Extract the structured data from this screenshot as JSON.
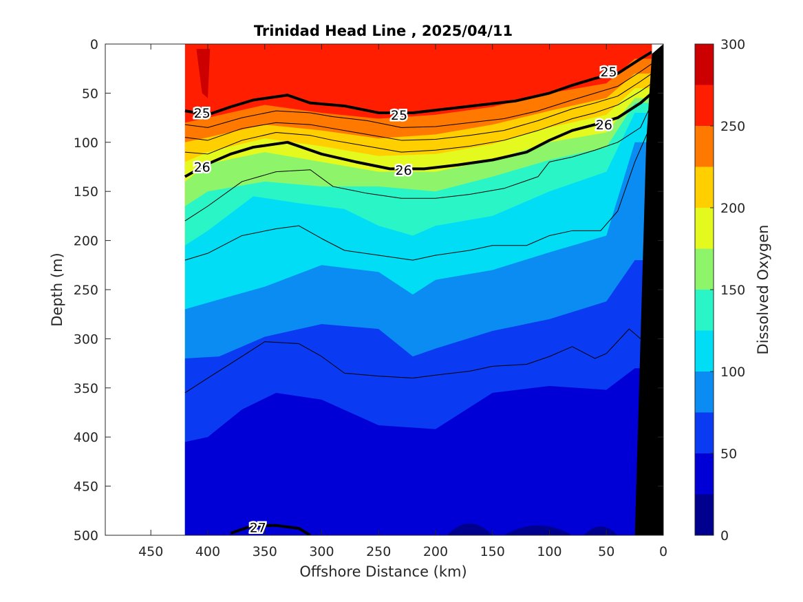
{
  "chart_data": {
    "type": "filled-contour",
    "title": "Trinidad Head Line , 2025/04/11",
    "xlabel": "Offshore Distance (km)",
    "ylabel": "Depth (m)",
    "colorbar_label": "Dissolved Oxygen",
    "xlim": [
      490,
      0
    ],
    "ylim": [
      0,
      500
    ],
    "x_ticks": [
      450,
      400,
      350,
      300,
      250,
      200,
      150,
      100,
      50,
      0
    ],
    "y_ticks": [
      0,
      50,
      100,
      150,
      200,
      250,
      300,
      350,
      400,
      450,
      500
    ],
    "colorbar_ticks": [
      0,
      50,
      100,
      150,
      200,
      250,
      300
    ],
    "colorbar_range": [
      0,
      300
    ],
    "colormap_levels": [
      {
        "from": 0,
        "to": 25,
        "color": "#00008f"
      },
      {
        "from": 25,
        "to": 50,
        "color": "#0000d6"
      },
      {
        "from": 50,
        "to": 75,
        "color": "#0a3af2"
      },
      {
        "from": 75,
        "to": 100,
        "color": "#0a8cf2"
      },
      {
        "from": 100,
        "to": 125,
        "color": "#00ddf5"
      },
      {
        "from": 125,
        "to": 150,
        "color": "#2af5c7"
      },
      {
        "from": 150,
        "to": 175,
        "color": "#8ef56a"
      },
      {
        "from": 175,
        "to": 200,
        "color": "#e4fa1e"
      },
      {
        "from": 200,
        "to": 225,
        "color": "#ffcf00"
      },
      {
        "from": 225,
        "to": 250,
        "color": "#ff7800"
      },
      {
        "from": 250,
        "to": 275,
        "color": "#ff1e00"
      },
      {
        "from": 275,
        "to": 300,
        "color": "#cc0000"
      }
    ],
    "data_extent_x": [
      420,
      10
    ],
    "oxygen_boundaries": [
      {
        "value": 25,
        "x": [
          420,
          350,
          300,
          250,
          200,
          150,
          100,
          50,
          10
        ],
        "depth": [
          500,
          500,
          500,
          500,
          500,
          500,
          500,
          500,
          500
        ]
      },
      {
        "value": 50,
        "x": [
          420,
          400,
          370,
          340,
          300,
          250,
          200,
          150,
          100,
          50,
          25
        ],
        "depth": [
          405,
          400,
          372,
          355,
          362,
          388,
          392,
          355,
          348,
          352,
          330
        ]
      },
      {
        "value": 75,
        "x": [
          420,
          390,
          350,
          300,
          250,
          220,
          200,
          150,
          100,
          50,
          25
        ],
        "depth": [
          320,
          318,
          298,
          285,
          290,
          318,
          310,
          292,
          280,
          262,
          220
        ]
      },
      {
        "value": 100,
        "x": [
          420,
          390,
          350,
          300,
          250,
          220,
          200,
          150,
          100,
          50,
          25
        ],
        "depth": [
          270,
          260,
          247,
          225,
          232,
          255,
          240,
          230,
          212,
          195,
          100
        ]
      },
      {
        "value": 125,
        "x": [
          420,
          400,
          360,
          320,
          280,
          250,
          220,
          200,
          150,
          100,
          50,
          25
        ],
        "depth": [
          205,
          190,
          155,
          162,
          168,
          185,
          195,
          185,
          175,
          150,
          130,
          70
        ]
      },
      {
        "value": 150,
        "x": [
          420,
          400,
          350,
          300,
          250,
          200,
          150,
          100,
          50,
          25
        ],
        "depth": [
          165,
          150,
          140,
          145,
          145,
          150,
          135,
          118,
          105,
          60
        ]
      },
      {
        "value": 175,
        "x": [
          420,
          400,
          350,
          300,
          250,
          200,
          150,
          100,
          50,
          25
        ],
        "depth": [
          140,
          122,
          110,
          120,
          130,
          130,
          118,
          100,
          90,
          55
        ]
      },
      {
        "value": 200,
        "x": [
          420,
          400,
          350,
          300,
          250,
          200,
          150,
          100,
          50,
          25
        ],
        "depth": [
          120,
          110,
          96,
          104,
          114,
          112,
          102,
          85,
          72,
          45
        ]
      },
      {
        "value": 225,
        "x": [
          420,
          400,
          350,
          300,
          250,
          200,
          150,
          100,
          50,
          25
        ],
        "depth": [
          100,
          95,
          82,
          88,
          96,
          92,
          82,
          68,
          55,
          30
        ]
      },
      {
        "value": 250,
        "x": [
          420,
          400,
          350,
          300,
          250,
          200,
          150,
          100,
          50,
          25
        ],
        "depth": [
          80,
          75,
          62,
          70,
          76,
          72,
          64,
          50,
          40,
          15
        ]
      },
      {
        "value": 275,
        "x": [
          410,
          405,
          400,
          398
        ],
        "depth": [
          5,
          50,
          55,
          5
        ]
      }
    ],
    "isopycnals": [
      {
        "label": "25",
        "bold": true,
        "x": [
          420,
          400,
          380,
          360,
          330,
          310,
          280,
          250,
          220,
          190,
          160,
          130,
          100,
          80,
          60,
          40,
          20,
          10
        ],
        "depth": [
          68,
          72,
          64,
          57,
          52,
          60,
          63,
          70,
          70,
          66,
          62,
          58,
          50,
          42,
          35,
          30,
          15,
          8
        ]
      },
      {
        "label": "26",
        "bold": true,
        "x": [
          420,
          400,
          380,
          360,
          330,
          300,
          270,
          240,
          210,
          180,
          150,
          120,
          100,
          80,
          60,
          40,
          20,
          10
        ],
        "depth": [
          135,
          122,
          112,
          105,
          100,
          112,
          120,
          127,
          127,
          123,
          118,
          110,
          98,
          88,
          82,
          75,
          60,
          50
        ]
      },
      {
        "label": "27",
        "bold": true,
        "x": [
          380,
          360,
          340,
          320,
          310
        ],
        "depth": [
          498,
          490,
          490,
          493,
          500
        ]
      },
      {
        "label": "",
        "bold": false,
        "x": [
          420,
          400,
          370,
          340,
          310,
          290,
          260,
          230,
          200,
          170,
          140,
          110,
          80,
          60,
          40,
          20,
          10
        ],
        "depth": [
          82,
          85,
          75,
          68,
          70,
          74,
          78,
          85,
          84,
          80,
          76,
          68,
          57,
          50,
          43,
          28,
          20
        ]
      },
      {
        "label": "",
        "bold": false,
        "x": [
          420,
          400,
          370,
          340,
          310,
          290,
          260,
          230,
          200,
          170,
          140,
          110,
          80,
          60,
          40,
          20,
          10
        ],
        "depth": [
          95,
          98,
          86,
          80,
          82,
          86,
          92,
          98,
          97,
          93,
          88,
          78,
          66,
          60,
          53,
          38,
          30
        ]
      },
      {
        "label": "",
        "bold": false,
        "x": [
          420,
          400,
          370,
          340,
          310,
          290,
          260,
          230,
          200,
          170,
          140,
          110,
          80,
          60,
          40,
          20,
          10
        ],
        "depth": [
          110,
          112,
          98,
          90,
          93,
          98,
          104,
          110,
          108,
          104,
          98,
          88,
          76,
          70,
          62,
          48,
          40
        ]
      },
      {
        "label": "",
        "bold": false,
        "x": [
          420,
          400,
          370,
          340,
          310,
          290,
          260,
          230,
          200,
          170,
          140,
          110,
          100,
          80,
          60,
          40,
          20,
          10
        ],
        "depth": [
          180,
          165,
          140,
          130,
          128,
          145,
          152,
          157,
          157,
          153,
          147,
          135,
          120,
          115,
          108,
          100,
          85,
          60
        ]
      },
      {
        "label": "",
        "bold": false,
        "x": [
          420,
          400,
          370,
          340,
          320,
          300,
          280,
          250,
          220,
          200,
          170,
          150,
          120,
          100,
          80,
          55,
          40,
          25,
          10
        ],
        "depth": [
          220,
          213,
          195,
          188,
          185,
          198,
          210,
          215,
          220,
          215,
          210,
          205,
          205,
          195,
          190,
          190,
          170,
          120,
          80
        ]
      },
      {
        "label": "",
        "bold": false,
        "x": [
          420,
          400,
          370,
          350,
          320,
          300,
          280,
          250,
          220,
          200,
          170,
          150,
          120,
          100,
          80,
          60,
          50,
          30,
          20
        ],
        "depth": [
          355,
          340,
          318,
          303,
          305,
          318,
          335,
          338,
          340,
          337,
          333,
          328,
          326,
          318,
          308,
          320,
          315,
          290,
          300
        ]
      }
    ],
    "contour_labels": [
      {
        "text": "25",
        "x": 405,
        "depth": 70
      },
      {
        "text": "25",
        "x": 232,
        "depth": 72
      },
      {
        "text": "25",
        "x": 48,
        "depth": 28
      },
      {
        "text": "26",
        "x": 405,
        "depth": 125
      },
      {
        "text": "26",
        "x": 228,
        "depth": 128
      },
      {
        "text": "26",
        "x": 52,
        "depth": 82
      },
      {
        "text": "27",
        "x": 356,
        "depth": 492
      }
    ],
    "bathymetry": {
      "x": [
        0,
        0,
        10,
        25,
        27
      ],
      "depth": [
        0,
        500,
        500,
        500,
        500
      ],
      "shelf_edge_x": [
        10,
        15,
        25
      ],
      "shelf_edge_depth": [
        10,
        100,
        500
      ]
    }
  }
}
